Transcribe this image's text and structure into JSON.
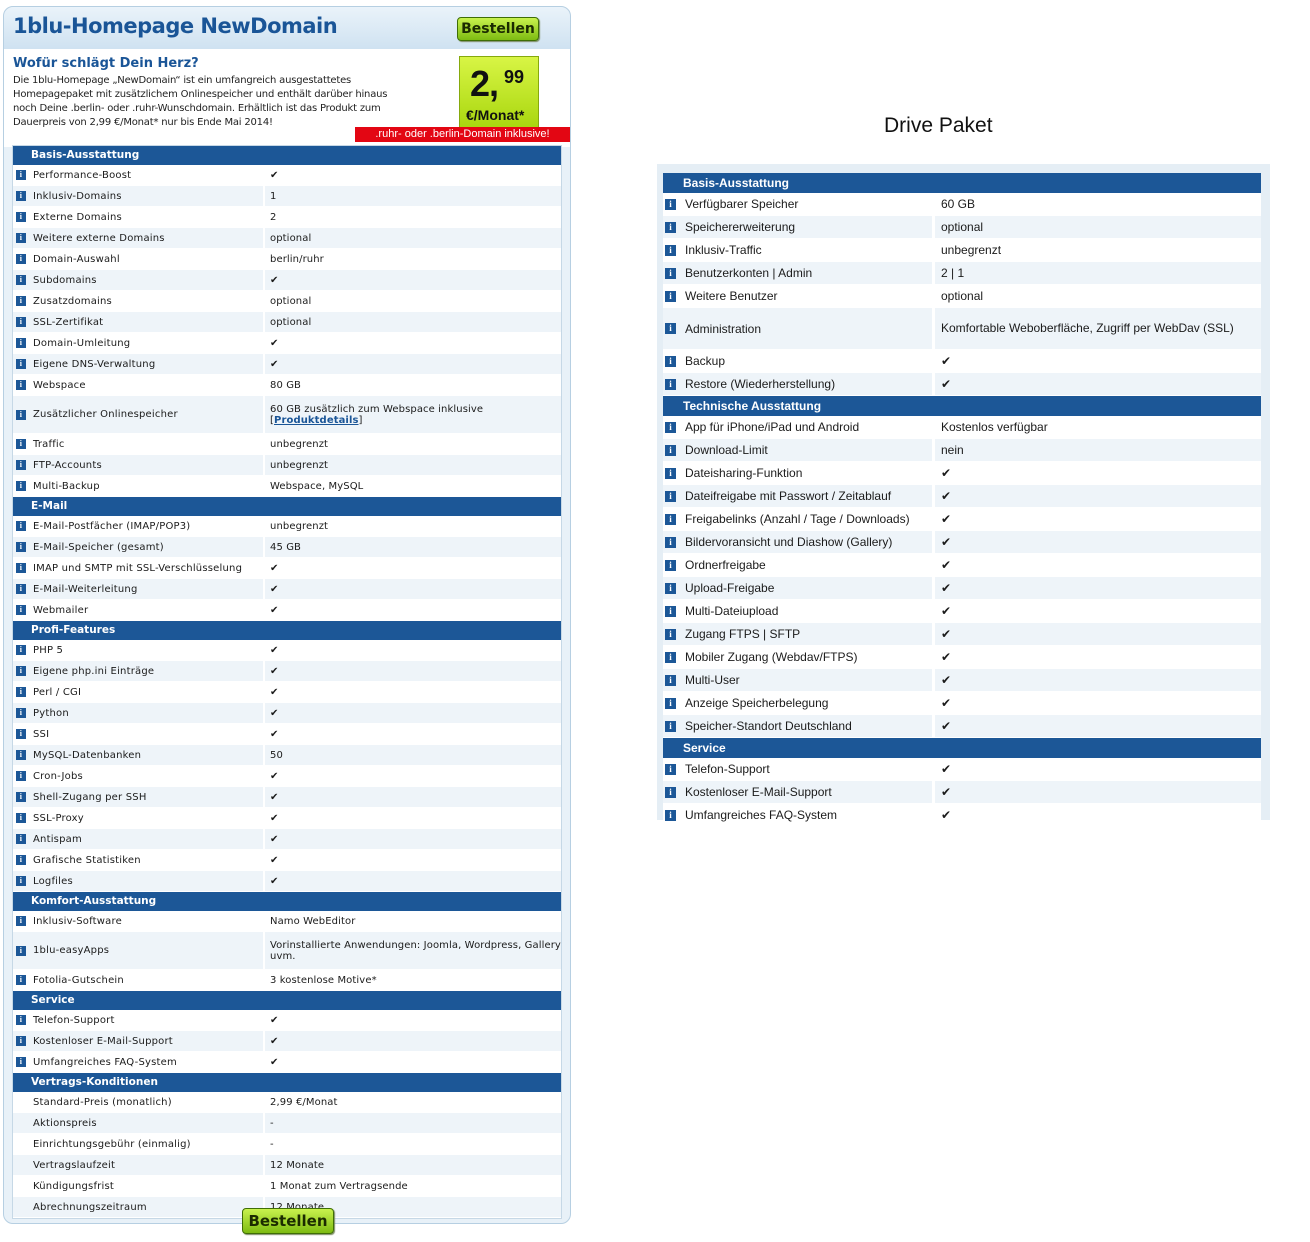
{
  "left_product": {
    "title": "1blu-Homepage NewDomain",
    "order_button_label": "Bestellen",
    "promo_headline": "Wofür schlägt Dein Herz?",
    "promo_text": "Die 1blu-Homepage „NewDomain“ ist ein umfangreich ausgestattetes Homepagepaket mit zusätzlichem Onlinespeicher und enthält darüber hinaus noch Deine .berlin- oder .ruhr-Wunschdomain. Erhältlich ist das Produkt zum Dauerpreis von 2,99 €/Monat* nur bis Ende Mai 2014!",
    "price_main": "2,",
    "price_cents": "99",
    "price_unit": "€/Monat*",
    "promo_banner": ".ruhr- oder .berlin-Domain inklusive!",
    "sections": [
      {
        "title": "Basis-Ausstattung",
        "rows": [
          {
            "label": "Performance-Boost",
            "value": "✔"
          },
          {
            "label": "Inklusiv-Domains",
            "value": "1"
          },
          {
            "label": "Externe Domains",
            "value": "2"
          },
          {
            "label": "Weitere externe Domains",
            "value": "optional"
          },
          {
            "label": "Domain-Auswahl",
            "value": "berlin/ruhr"
          },
          {
            "label": "Subdomains",
            "value": "✔"
          },
          {
            "label": "Zusatzdomains",
            "value": "optional"
          },
          {
            "label": "SSL-Zertifikat",
            "value": "optional"
          },
          {
            "label": "Domain-Umleitung",
            "value": "✔"
          },
          {
            "label": "Eigene DNS-Verwaltung",
            "value": "✔"
          },
          {
            "label": "Webspace",
            "value": "80 GB"
          },
          {
            "label": "Zusätzlicher Onlinespeicher",
            "value": "60 GB zusätzlich zum Webspace inklusive",
            "link": "Produktdetails"
          },
          {
            "label": "Traffic",
            "value": "unbegrenzt"
          },
          {
            "label": "FTP-Accounts",
            "value": "unbegrenzt"
          },
          {
            "label": "Multi-Backup",
            "value": "Webspace, MySQL"
          }
        ]
      },
      {
        "title": "E-Mail",
        "rows": [
          {
            "label": "E-Mail-Postfächer (IMAP/POP3)",
            "value": "unbegrenzt"
          },
          {
            "label": "E-Mail-Speicher (gesamt)",
            "value": "45 GB"
          },
          {
            "label": "IMAP und SMTP mit SSL-Verschlüsselung",
            "value": "✔"
          },
          {
            "label": "E-Mail-Weiterleitung",
            "value": "✔"
          },
          {
            "label": "Webmailer",
            "value": "✔"
          }
        ]
      },
      {
        "title": "Profi-Features",
        "rows": [
          {
            "label": "PHP 5",
            "value": "✔"
          },
          {
            "label": "Eigene php.ini Einträge",
            "value": "✔"
          },
          {
            "label": "Perl / CGI",
            "value": "✔"
          },
          {
            "label": "Python",
            "value": "✔"
          },
          {
            "label": "SSI",
            "value": "✔"
          },
          {
            "label": "MySQL-Datenbanken",
            "value": "50"
          },
          {
            "label": "Cron-Jobs",
            "value": "✔"
          },
          {
            "label": "Shell-Zugang per SSH",
            "value": "✔"
          },
          {
            "label": "SSL-Proxy",
            "value": "✔"
          },
          {
            "label": "Antispam",
            "value": "✔"
          },
          {
            "label": "Grafische Statistiken",
            "value": "✔"
          },
          {
            "label": "Logfiles",
            "value": "✔"
          }
        ]
      },
      {
        "title": "Komfort-Ausstattung",
        "rows": [
          {
            "label": "Inklusiv-Software",
            "value": "Namo WebEditor"
          },
          {
            "label": "1blu-easyApps",
            "value": "Vorinstallierte Anwendungen: Joomla, Wordpress, Gallery uvm.",
            "tall": true
          },
          {
            "label": "Fotolia-Gutschein",
            "value": "3 kostenlose Motive*"
          }
        ]
      },
      {
        "title": "Service",
        "rows": [
          {
            "label": "Telefon-Support",
            "value": "✔"
          },
          {
            "label": "Kostenloser E-Mail-Support",
            "value": "✔"
          },
          {
            "label": "Umfangreiches FAQ-System",
            "value": "✔"
          }
        ]
      },
      {
        "title": "Vertrags-Konditionen",
        "no_icons": true,
        "rows": [
          {
            "label": "Standard-Preis (monatlich)",
            "value": "2,99 €/Monat"
          },
          {
            "label": "Aktionspreis",
            "value": "-"
          },
          {
            "label": "Einrichtungsgebühr (einmalig)",
            "value": "-"
          },
          {
            "label": "Vertragslaufzeit",
            "value": "12 Monate"
          },
          {
            "label": "Kündigungsfrist",
            "value": "1 Monat zum Vertragsende"
          },
          {
            "label": "Abrechnungszeitraum",
            "value": "12 Monate"
          }
        ]
      }
    ]
  },
  "right_product": {
    "title": "Drive Paket",
    "sections": [
      {
        "title": "Basis-Ausstattung",
        "rows": [
          {
            "label": "Verfügbarer Speicher",
            "value": "60 GB"
          },
          {
            "label": "Speichererweiterung",
            "value": "optional"
          },
          {
            "label": "Inklusiv-Traffic",
            "value": "unbegrenzt"
          },
          {
            "label": "Benutzerkonten | Admin",
            "value": "2 | 1"
          },
          {
            "label": "Weitere Benutzer",
            "value": "optional"
          },
          {
            "label": "Administration",
            "value": "Komfortable Weboberfläche, Zugriff per WebDav (SSL)",
            "tall": true
          },
          {
            "label": "Backup",
            "value": "✔"
          },
          {
            "label": "Restore (Wiederherstellung)",
            "value": "✔"
          }
        ]
      },
      {
        "title": "Technische Ausstattung",
        "rows": [
          {
            "label": "App für iPhone/iPad und Android",
            "value": "Kostenlos verfügbar"
          },
          {
            "label": "Download-Limit",
            "value": "nein"
          },
          {
            "label": "Dateisharing-Funktion",
            "value": "✔"
          },
          {
            "label": "Dateifreigabe mit Passwort / Zeitablauf",
            "value": "✔"
          },
          {
            "label": "Freigabelinks (Anzahl / Tage / Downloads)",
            "value": "✔"
          },
          {
            "label": "Bildervoransicht und Diashow (Gallery)",
            "value": "✔"
          },
          {
            "label": "Ordnerfreigabe",
            "value": "✔"
          },
          {
            "label": "Upload-Freigabe",
            "value": "✔"
          },
          {
            "label": "Multi-Dateiupload",
            "value": "✔"
          },
          {
            "label": "Zugang FTPS | SFTP",
            "value": "✔"
          },
          {
            "label": "Mobiler Zugang (Webdav/FTPS)",
            "value": "✔"
          },
          {
            "label": "Multi-User",
            "value": "✔"
          },
          {
            "label": "Anzeige Speicherbelegung",
            "value": "✔"
          },
          {
            "label": "Speicher-Standort Deutschland",
            "value": "✔"
          }
        ]
      },
      {
        "title": "Service",
        "rows": [
          {
            "label": "Telefon-Support",
            "value": "✔"
          },
          {
            "label": "Kostenloser E-Mail-Support",
            "value": "✔"
          },
          {
            "label": "Umfangreiches FAQ-System",
            "value": "✔"
          }
        ]
      }
    ]
  },
  "colors": {
    "section_header": "#1c5797",
    "title_blue": "#1a5597",
    "price_badge": "#c3e629",
    "promo_banner": "#e30613",
    "button_green": "#9ad41c"
  },
  "icons": {
    "info": "info-icon"
  }
}
